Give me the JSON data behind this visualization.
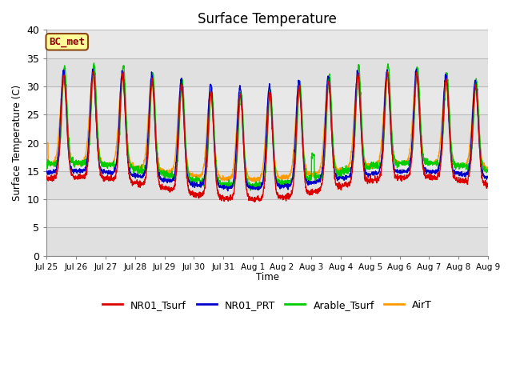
{
  "title": "Surface Temperature",
  "ylabel": "Surface Temperature (C)",
  "xlabel": "Time",
  "ylim": [
    0,
    40
  ],
  "annotation_text": "BC_met",
  "grid_color": "#cccccc",
  "bg_color": "#e8e8e8",
  "bg_band_color": "#d8d8d8",
  "series": [
    {
      "label": "NR01_Tsurf",
      "color": "#dd0000"
    },
    {
      "label": "NR01_PRT",
      "color": "#0000cc"
    },
    {
      "label": "Arable_Tsurf",
      "color": "#00cc00"
    },
    {
      "label": "AirT",
      "color": "#ff9900"
    }
  ],
  "xtick_labels": [
    "Jul 25",
    "Jul 26",
    "Jul 27",
    "Jul 28",
    "Jul 29",
    "Jul 30",
    "Jul 31",
    "Aug 1",
    "Aug 2",
    "Aug 3",
    "Aug 4",
    "Aug 5",
    "Aug 6",
    "Aug 7",
    "Aug 8",
    "Aug 9"
  ],
  "n_days": 15,
  "samples_per_day": 144,
  "legend_fontsize": 9,
  "title_fontsize": 12
}
